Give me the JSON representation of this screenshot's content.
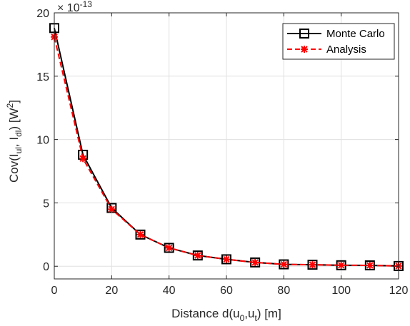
{
  "chart_data": {
    "type": "line",
    "title": "",
    "xlabel": {
      "main": "Distance d(u",
      "sub1": "0",
      "mid": ",u",
      "sub2": "t",
      "end": ") [m]"
    },
    "ylabel": {
      "main": "Cov(I",
      "sub1": "ul",
      "mid": ", I",
      "sub2": "dl",
      "end": ") [W",
      "sup": "2",
      "close": "]"
    },
    "y_multiplier": {
      "base": "× 10",
      "exp": "-13"
    },
    "xlim": [
      0,
      120
    ],
    "ylim": [
      -1,
      20
    ],
    "xticks": [
      "0",
      "20",
      "40",
      "60",
      "80",
      "100",
      "120"
    ],
    "xtick_values": [
      0,
      20,
      40,
      60,
      80,
      100,
      120
    ],
    "yticks": [
      "0",
      "5",
      "10",
      "15",
      "20"
    ],
    "ytick_values": [
      0,
      5,
      10,
      15,
      20
    ],
    "grid": true,
    "legend_position": "top-right",
    "x": [
      0,
      10,
      20,
      30,
      40,
      50,
      60,
      70,
      80,
      90,
      100,
      110,
      120
    ],
    "series": [
      {
        "name": "Monte Carlo",
        "color": "#000000",
        "line": "solid",
        "marker": "square",
        "values": [
          18.8,
          8.8,
          4.6,
          2.5,
          1.45,
          0.85,
          0.55,
          0.3,
          0.15,
          0.12,
          0.08,
          0.07,
          0.02
        ]
      },
      {
        "name": "Analysis",
        "color": "#ff0000",
        "line": "dashed",
        "marker": "asterisk",
        "values": [
          18.1,
          8.5,
          4.5,
          2.5,
          1.45,
          0.85,
          0.55,
          0.3,
          0.15,
          0.12,
          0.08,
          0.07,
          0.02
        ]
      }
    ]
  }
}
